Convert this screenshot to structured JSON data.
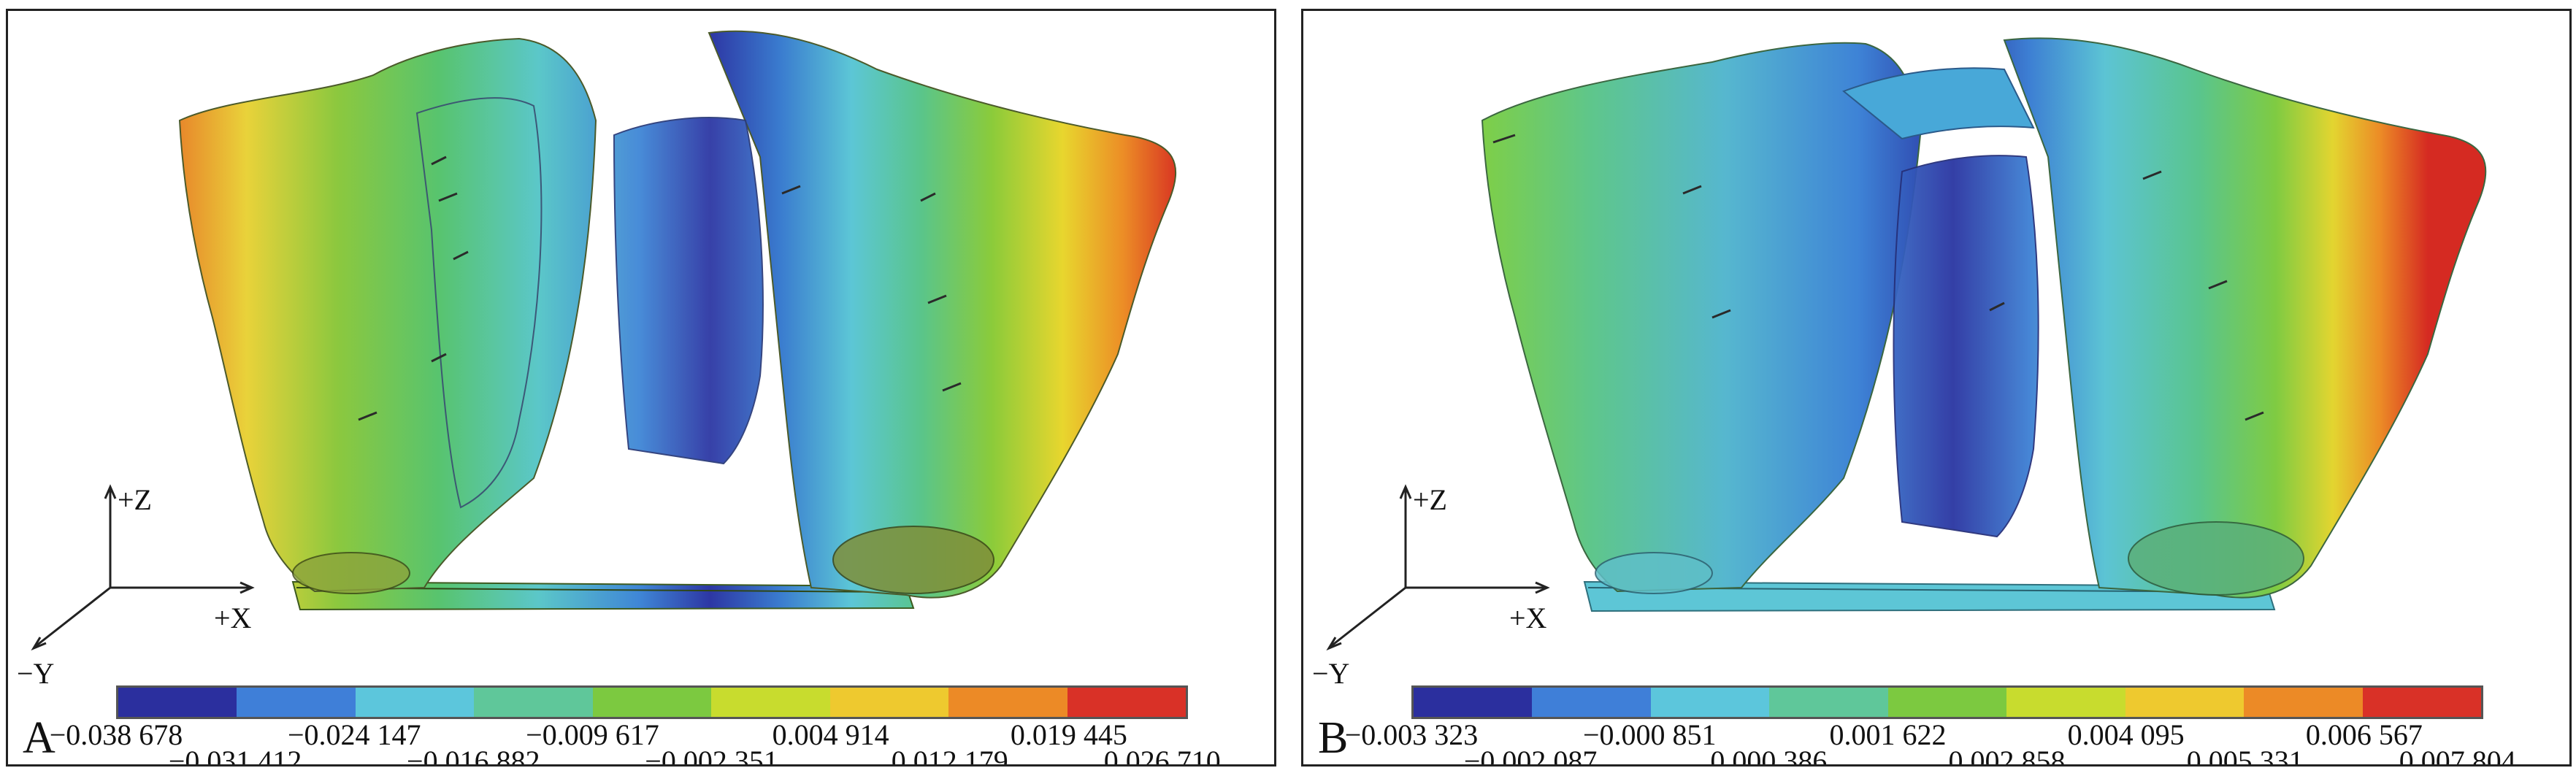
{
  "panels": [
    {
      "id": "A",
      "label": "A",
      "axes": {
        "z": "+Z",
        "x": "+X",
        "y": "−Y"
      },
      "colorbar": {
        "colors": [
          "#2b2f9e",
          "#3f7fd8",
          "#5cc6dc",
          "#5fc79a",
          "#7cc940",
          "#c8dc2e",
          "#eec92f",
          "#ec8a26",
          "#d93127"
        ],
        "upper_ticks": [
          "−0.038 678",
          "−0.024 147",
          "−0.009 617",
          "0.004 914",
          "0.019 445"
        ],
        "lower_ticks": [
          "−0.031 412",
          "−0.016 882",
          "−0.002 351",
          "0.012 179",
          "0.026 710"
        ]
      }
    },
    {
      "id": "B",
      "label": "B",
      "axes": {
        "z": "+Z",
        "x": "+X",
        "y": "−Y"
      },
      "colorbar": {
        "colors": [
          "#2b2f9e",
          "#3f7fd8",
          "#5cc6dc",
          "#5fc79a",
          "#7cc940",
          "#c8dc2e",
          "#eec92f",
          "#ec8a26",
          "#d93127"
        ],
        "upper_ticks": [
          "−0.003 323",
          "−0.000 851",
          "0.001 622",
          "0.004 095",
          "0.006 567"
        ],
        "lower_ticks": [
          "−0.002 087",
          "0.000 386",
          "0.002 858",
          "0.005 331",
          "0.007 804"
        ]
      }
    }
  ]
}
